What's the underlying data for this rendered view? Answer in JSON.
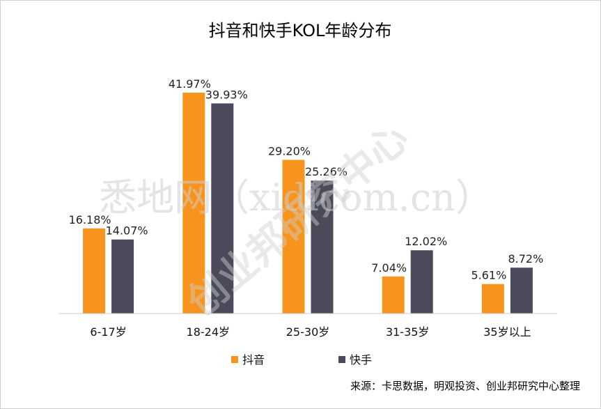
{
  "chart_data": {
    "type": "bar",
    "title": "抖音和快手KOL年龄分布",
    "categories": [
      "6-17岁",
      "18-24岁",
      "25-30岁",
      "31-35岁",
      "35岁以上"
    ],
    "series": [
      {
        "name": "抖音",
        "color": "#F7941D",
        "values": [
          16.18,
          41.97,
          29.2,
          7.04,
          5.61
        ],
        "labels": [
          "16.18%",
          "41.97%",
          "29.20%",
          "7.04%",
          "5.61%"
        ]
      },
      {
        "name": "快手",
        "color": "#4A4A5A",
        "values": [
          14.07,
          39.93,
          25.26,
          12.02,
          8.72
        ],
        "labels": [
          "14.07%",
          "39.93%",
          "25.26%",
          "12.02%",
          "8.72%"
        ]
      }
    ],
    "ylim": [
      0,
      42.5
    ],
    "legend": "bottom",
    "grid": false
  },
  "source_note": "来源：卡思数据，明观投资、创业邦研究中心整理",
  "watermarks": {
    "main": "悉地网（xidicom.cn）",
    "diagonal": "创业邦研究中心"
  }
}
